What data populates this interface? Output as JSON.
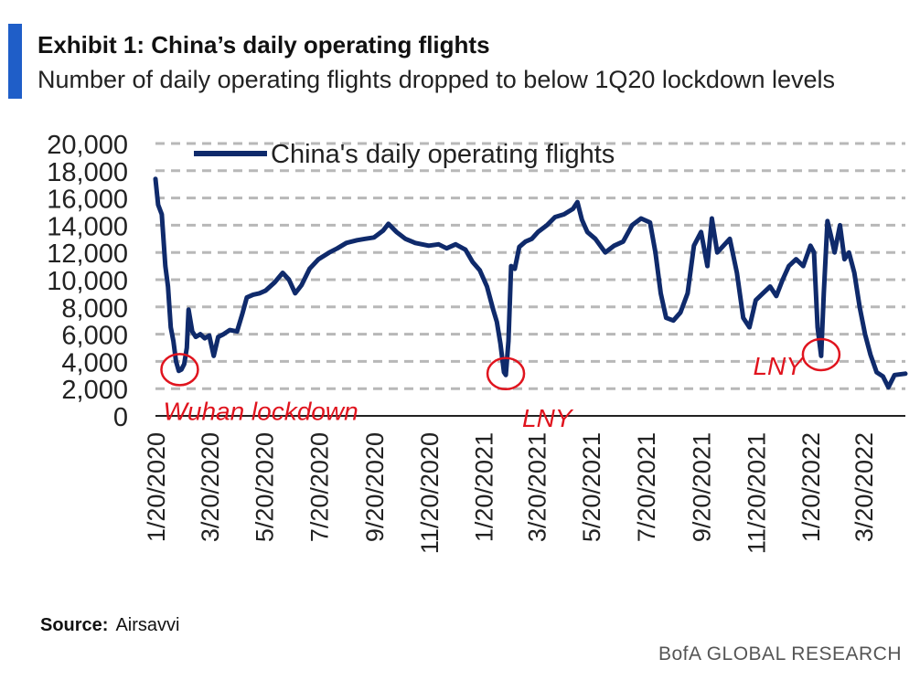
{
  "header": {
    "title": "Exhibit 1: China’s daily operating flights",
    "subtitle": "Number of daily operating flights dropped to below 1Q20 lockdown levels"
  },
  "footer": {
    "source_label": "Source:",
    "source_value": "Airsavvi",
    "brand": "BofA GLOBAL RESEARCH"
  },
  "colors": {
    "accent": "#1f5ec8",
    "series": "#0f2a6b",
    "annotation": "#e0141e",
    "grid": "#b8b8b8"
  },
  "chart_data": {
    "type": "line",
    "title": "",
    "xlabel": "",
    "ylabel": "",
    "ylim": [
      0,
      20000
    ],
    "yticks": [
      0,
      2000,
      4000,
      6000,
      8000,
      10000,
      12000,
      14000,
      16000,
      18000,
      20000
    ],
    "ytick_labels": [
      "0",
      "2,000",
      "4,000",
      "6,000",
      "8,000",
      "10,000",
      "12,000",
      "14,000",
      "16,000",
      "18,000",
      "20,000"
    ],
    "xlim": [
      "2020-01-20",
      "2022-05-06"
    ],
    "xticks": [
      "2020-01-20",
      "2020-03-20",
      "2020-05-20",
      "2020-07-20",
      "2020-09-20",
      "2020-11-20",
      "2021-01-20",
      "2021-03-20",
      "2021-05-20",
      "2021-07-20",
      "2021-09-20",
      "2021-11-20",
      "2022-01-20",
      "2022-03-20"
    ],
    "xtick_labels": [
      "1/20/2020",
      "3/20/2020",
      "5/20/2020",
      "7/20/2020",
      "9/20/2020",
      "11/20/2020",
      "1/20/2021",
      "3/20/2021",
      "5/20/2021",
      "7/20/2021",
      "9/20/2021",
      "11/20/2021",
      "1/20/2022",
      "3/20/2022"
    ],
    "grid": "horizontal dashed",
    "legend": "top-left",
    "series": [
      {
        "name": "China's daily operating flights",
        "points": [
          [
            "2020-01-20",
            17400
          ],
          [
            "2020-01-23",
            15500
          ],
          [
            "2020-01-27",
            14800
          ],
          [
            "2020-01-31",
            11000
          ],
          [
            "2020-02-03",
            9500
          ],
          [
            "2020-02-06",
            6500
          ],
          [
            "2020-02-09",
            5500
          ],
          [
            "2020-02-12",
            4000
          ],
          [
            "2020-02-15",
            3300
          ],
          [
            "2020-02-18",
            3400
          ],
          [
            "2020-02-21",
            3800
          ],
          [
            "2020-02-24",
            5000
          ],
          [
            "2020-02-26",
            7800
          ],
          [
            "2020-03-01",
            6200
          ],
          [
            "2020-03-05",
            5800
          ],
          [
            "2020-03-10",
            6000
          ],
          [
            "2020-03-15",
            5700
          ],
          [
            "2020-03-20",
            5900
          ],
          [
            "2020-03-25",
            4400
          ],
          [
            "2020-03-30",
            5800
          ],
          [
            "2020-04-05",
            6000
          ],
          [
            "2020-04-12",
            6300
          ],
          [
            "2020-04-20",
            6200
          ],
          [
            "2020-04-26",
            7500
          ],
          [
            "2020-05-01",
            8700
          ],
          [
            "2020-05-08",
            8900
          ],
          [
            "2020-05-15",
            9000
          ],
          [
            "2020-05-22",
            9200
          ],
          [
            "2020-06-01",
            9800
          ],
          [
            "2020-06-10",
            10500
          ],
          [
            "2020-06-17",
            10000
          ],
          [
            "2020-06-24",
            9000
          ],
          [
            "2020-07-01",
            9600
          ],
          [
            "2020-07-10",
            10800
          ],
          [
            "2020-07-20",
            11500
          ],
          [
            "2020-08-01",
            12000
          ],
          [
            "2020-08-10",
            12300
          ],
          [
            "2020-08-20",
            12700
          ],
          [
            "2020-09-01",
            12900
          ],
          [
            "2020-09-10",
            13000
          ],
          [
            "2020-09-20",
            13100
          ],
          [
            "2020-09-30",
            13600
          ],
          [
            "2020-10-06",
            14100
          ],
          [
            "2020-10-15",
            13500
          ],
          [
            "2020-10-25",
            13000
          ],
          [
            "2020-11-05",
            12700
          ],
          [
            "2020-11-20",
            12500
          ],
          [
            "2020-12-01",
            12600
          ],
          [
            "2020-12-10",
            12300
          ],
          [
            "2020-12-20",
            12600
          ],
          [
            "2020-12-31",
            12200
          ],
          [
            "2021-01-08",
            11300
          ],
          [
            "2021-01-16",
            10700
          ],
          [
            "2021-01-24",
            9500
          ],
          [
            "2021-01-31",
            7800
          ],
          [
            "2021-02-04",
            6900
          ],
          [
            "2021-02-08",
            5300
          ],
          [
            "2021-02-12",
            3200
          ],
          [
            "2021-02-14",
            3000
          ],
          [
            "2021-02-17",
            5500
          ],
          [
            "2021-02-20",
            11000
          ],
          [
            "2021-02-24",
            10800
          ],
          [
            "2021-03-01",
            12400
          ],
          [
            "2021-03-08",
            12800
          ],
          [
            "2021-03-15",
            13000
          ],
          [
            "2021-03-22",
            13500
          ],
          [
            "2021-04-01",
            14000
          ],
          [
            "2021-04-10",
            14600
          ],
          [
            "2021-04-20",
            14800
          ],
          [
            "2021-04-30",
            15200
          ],
          [
            "2021-05-05",
            15700
          ],
          [
            "2021-05-10",
            14400
          ],
          [
            "2021-05-16",
            13500
          ],
          [
            "2021-05-25",
            13000
          ],
          [
            "2021-06-05",
            12000
          ],
          [
            "2021-06-15",
            12500
          ],
          [
            "2021-06-25",
            12800
          ],
          [
            "2021-07-05",
            14000
          ],
          [
            "2021-07-15",
            14500
          ],
          [
            "2021-07-25",
            14200
          ],
          [
            "2021-07-31",
            12000
          ],
          [
            "2021-08-06",
            9000
          ],
          [
            "2021-08-12",
            7200
          ],
          [
            "2021-08-20",
            7000
          ],
          [
            "2021-08-28",
            7600
          ],
          [
            "2021-09-05",
            9000
          ],
          [
            "2021-09-12",
            12500
          ],
          [
            "2021-09-20",
            13500
          ],
          [
            "2021-09-27",
            11000
          ],
          [
            "2021-10-02",
            14500
          ],
          [
            "2021-10-08",
            12000
          ],
          [
            "2021-10-15",
            12500
          ],
          [
            "2021-10-22",
            13000
          ],
          [
            "2021-10-30",
            10500
          ],
          [
            "2021-11-06",
            7200
          ],
          [
            "2021-11-13",
            6500
          ],
          [
            "2021-11-20",
            8500
          ],
          [
            "2021-11-28",
            9000
          ],
          [
            "2021-12-06",
            9500
          ],
          [
            "2021-12-13",
            8800
          ],
          [
            "2021-12-20",
            10000
          ],
          [
            "2021-12-27",
            11000
          ],
          [
            "2022-01-04",
            11500
          ],
          [
            "2022-01-12",
            11000
          ],
          [
            "2022-01-20",
            12500
          ],
          [
            "2022-01-24",
            12000
          ],
          [
            "2022-01-28",
            6500
          ],
          [
            "2022-02-01",
            4400
          ],
          [
            "2022-02-04",
            9000
          ],
          [
            "2022-02-08",
            14300
          ],
          [
            "2022-02-12",
            13200
          ],
          [
            "2022-02-16",
            12000
          ],
          [
            "2022-02-22",
            14000
          ],
          [
            "2022-02-27",
            11500
          ],
          [
            "2022-03-04",
            12000
          ],
          [
            "2022-03-10",
            10500
          ],
          [
            "2022-03-16",
            8000
          ],
          [
            "2022-03-22",
            6000
          ],
          [
            "2022-03-28",
            4500
          ],
          [
            "2022-04-04",
            3200
          ],
          [
            "2022-04-11",
            2900
          ],
          [
            "2022-04-17",
            2100
          ],
          [
            "2022-04-24",
            3000
          ],
          [
            "2022-05-06",
            3100
          ]
        ]
      }
    ],
    "annotations": [
      {
        "text": "Wuhan lockdown",
        "x": "2020-02-16",
        "y": 3400
      },
      {
        "text": "LNY",
        "x": "2021-02-14",
        "y": 3100
      },
      {
        "text": "LNY",
        "x": "2022-02-01",
        "y": 4500
      }
    ]
  }
}
